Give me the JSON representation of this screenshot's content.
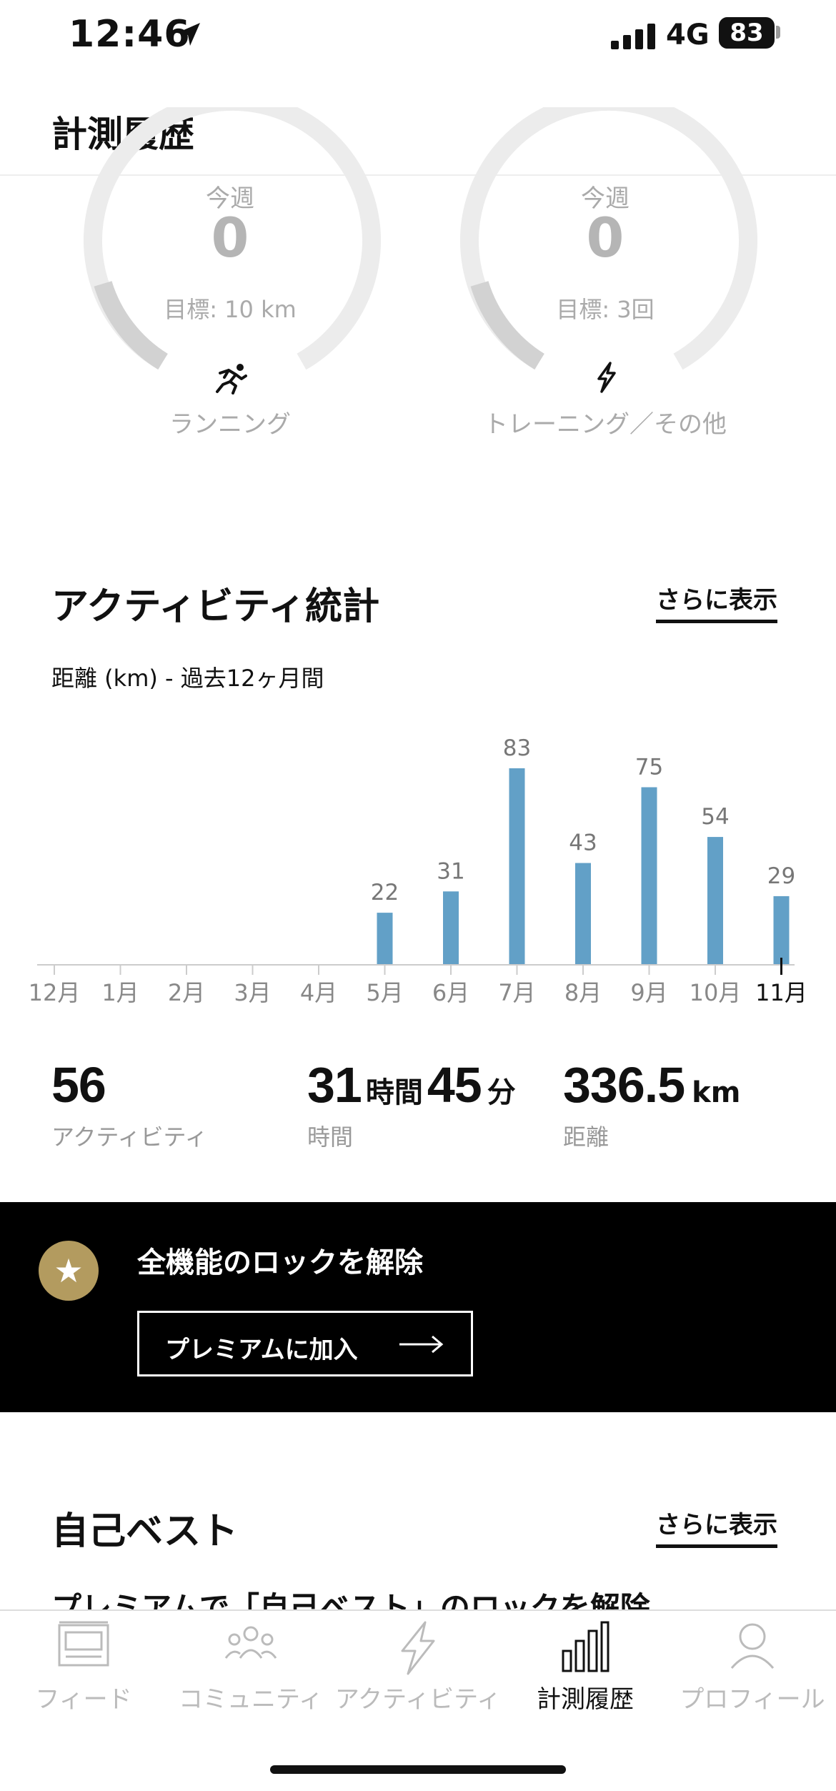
{
  "status_bar": {
    "time": "12:46",
    "network": "4G",
    "battery": "83"
  },
  "header": {
    "title": "計測履歴"
  },
  "goals": [
    {
      "period": "今週",
      "value": "0",
      "goal": "目標: 10 km",
      "name": "ランニング",
      "icon": "running-icon"
    },
    {
      "period": "今週",
      "value": "0",
      "goal": "目標: 3回",
      "name": "トレーニング／その他",
      "icon": "lightning-icon"
    }
  ],
  "activity_stats": {
    "title": "アクティビティ統計",
    "more_label": "さらに表示",
    "subtitle": "距離 (km) - 過去12ヶ月間"
  },
  "chart_data": {
    "type": "bar",
    "title": "",
    "xlabel": "",
    "ylabel": "",
    "categories": [
      "12月",
      "1月",
      "2月",
      "3月",
      "4月",
      "5月",
      "6月",
      "7月",
      "8月",
      "9月",
      "10月",
      "11月"
    ],
    "values": [
      0,
      0,
      0,
      0,
      0,
      22,
      31,
      83,
      43,
      75,
      54,
      29
    ],
    "data_labels": [
      "",
      "",
      "",
      "",
      "",
      "22",
      "31",
      "83",
      "43",
      "75",
      "54",
      "29"
    ],
    "ylim": [
      0,
      83
    ],
    "grid": false,
    "bar_color": "#62a0c7",
    "selected_category": "11月"
  },
  "stats": {
    "activities": {
      "value": "56",
      "label": "アクティビティ"
    },
    "time": {
      "hours": "31",
      "hours_unit": "時間",
      "minutes": "45",
      "minutes_unit": "分",
      "label": "時間"
    },
    "distance": {
      "value": "336.5",
      "unit": "km",
      "label": "距離"
    }
  },
  "premium": {
    "title": "全機能のロックを解除",
    "button_label": "プレミアムに加入",
    "accent_color": "#b39b5f"
  },
  "personal_best": {
    "title": "自己ベスト",
    "more_label": "さらに表示",
    "teaser": "プレミアムで「自己ベスト」のロックを解除"
  },
  "tabbar": {
    "items": [
      {
        "label": "フィード",
        "icon": "feed-icon",
        "active": false
      },
      {
        "label": "コミュニティ",
        "icon": "community-icon",
        "active": false
      },
      {
        "label": "アクティビティ",
        "icon": "lightning-icon",
        "active": false
      },
      {
        "label": "計測履歴",
        "icon": "bar-chart-icon",
        "active": true
      },
      {
        "label": "プロフィール",
        "icon": "profile-icon",
        "active": false
      }
    ]
  }
}
